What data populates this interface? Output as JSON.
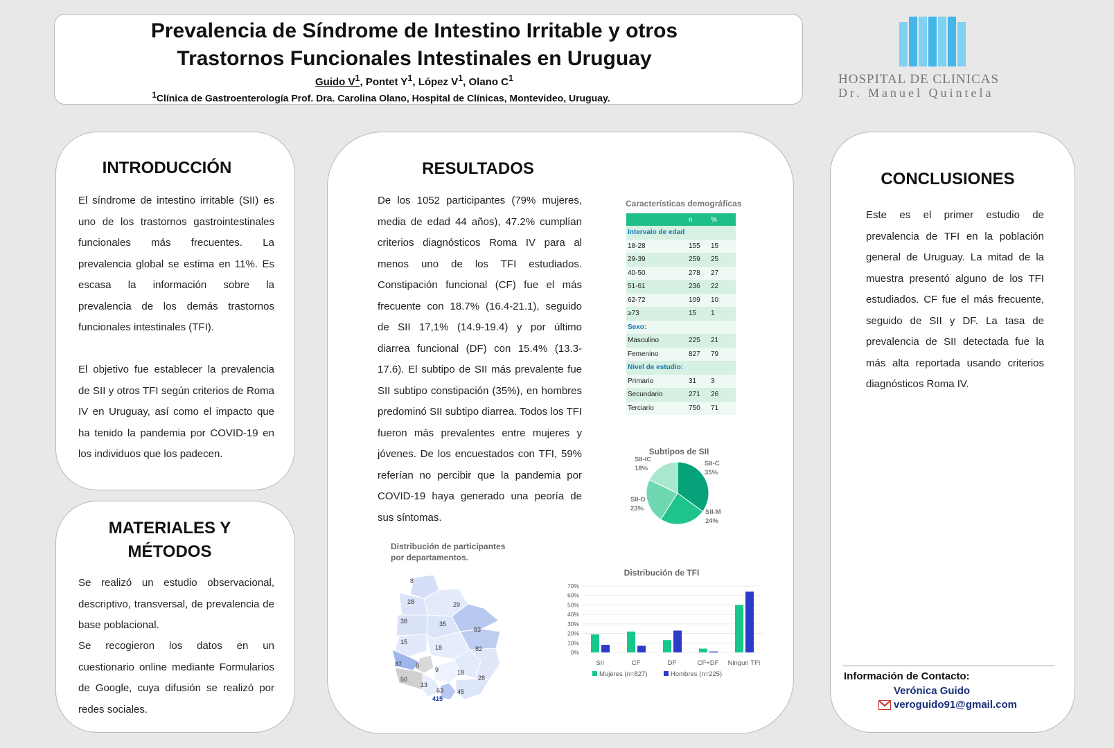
{
  "header": {
    "title_line1": "Prevalencia de Síndrome de Intestino Irritable y otros",
    "title_line2": "Trastornos Funcionales Intestinales en Uruguay",
    "authors": [
      {
        "name": "Guido V",
        "sup": "1"
      },
      {
        "name": "Pontet Y",
        "sup": "1"
      },
      {
        "name": "López V",
        "sup": "1"
      },
      {
        "name": "Olano C",
        "sup": "1"
      }
    ],
    "affiliation_sup": "1",
    "affiliation": "Clínica de Gastroenterología Prof. Dra. Carolina Olano, Hospital de Clínicas, Montevideo, Uruguay."
  },
  "logo": {
    "name": "HOSPITAL DE CLINICAS",
    "sub": "Dr. Manuel Quintela",
    "color": "#45b6e8"
  },
  "intro": {
    "title": "INTRODUCCIÓN",
    "p1": "El síndrome de intestino irritable (SII) es uno de los trastornos gastrointestinales funcionales más frecuentes. La prevalencia global se estima en 11%. Es escasa la información sobre la prevalencia de los demás trastornos funcionales intestinales (TFI).",
    "p2": "El objetivo fue establecer la prevalencia de SII y otros TFI según criterios de Roma IV en Uruguay, así como el impacto que ha tenido la pandemia por COVID-19 en los individuos que los padecen."
  },
  "methods": {
    "title1": "MATERIALES Y",
    "title2": "MÉTODOS",
    "p1": "Se realizó un estudio observacional, descriptivo, transversal, de prevalencia de base poblacional.",
    "p2": "Se recogieron los datos en un cuestionario online mediante Formularios de Google, cuya difusión se realizó por redes sociales."
  },
  "results": {
    "title": "RESULTADOS",
    "text": "De los 1052 participantes (79% mujeres, media de edad 44 años), 47.2% cumplían criterios diagnósticos Roma IV para al menos uno de los TFI estudiados. Constipación funcional (CF) fue el más frecuente con 18.7% (16.4-21.1), seguido de SII 17,1% (14.9-19.4) y por último diarrea funcional (DF) con 15.4% (13.3-17.6). El subtipo de SII más prevalente fue SII subtipo constipación (35%), en hombres predominó SII subtipo diarrea. Todos los TFI fueron más prevalentes entre mujeres y jóvenes.  De los encuestados con TFI, 59% referían no percibir que la pandemia por COVID-19 haya generado una peoría de sus síntomas."
  },
  "demographics": {
    "title": "Características demográficas",
    "header": [
      "",
      "n",
      "%"
    ],
    "rows": [
      {
        "label": "Intervalo de edad",
        "n": "",
        "pct": "",
        "category": true
      },
      {
        "label": "18-28",
        "n": "155",
        "pct": "15"
      },
      {
        "label": "29-39",
        "n": "259",
        "pct": "25"
      },
      {
        "label": "40-50",
        "n": "278",
        "pct": "27"
      },
      {
        "label": "51-61",
        "n": "236",
        "pct": "22"
      },
      {
        "label": "62-72",
        "n": "109",
        "pct": "10"
      },
      {
        "label": "≥73",
        "n": "15",
        "pct": "1"
      },
      {
        "label": "Sexo:",
        "n": "",
        "pct": "",
        "category": true
      },
      {
        "label": "Masculino",
        "n": "225",
        "pct": "21"
      },
      {
        "label": "Femenino",
        "n": "827",
        "pct": "79"
      },
      {
        "label": "Nivel de estudio:",
        "n": "",
        "pct": "",
        "category": true
      },
      {
        "label": "Primario",
        "n": "31",
        "pct": "3"
      },
      {
        "label": "Secundario",
        "n": "271",
        "pct": "26"
      },
      {
        "label": "Terciario",
        "n": "750",
        "pct": "71"
      }
    ]
  },
  "map": {
    "title_line1": "Distribución de participantes",
    "title_line2": "por departamentos.",
    "labels": [
      "8",
      "28",
      "29",
      "38",
      "35",
      "83",
      "15",
      "18",
      "82",
      "87",
      "8",
      "9",
      "18",
      "28",
      "50",
      "13",
      "63",
      "45",
      "415"
    ]
  },
  "chart_data": [
    {
      "type": "pie",
      "title": "Subtipos de SII",
      "labels": [
        "SII-C",
        "SII-M",
        "SII-D",
        "SII-IC"
      ],
      "values": [
        35,
        24,
        23,
        18
      ],
      "value_labels": [
        "35%",
        "24%",
        "23%",
        "18%"
      ],
      "colors": [
        "#06a27a",
        "#1fc38e",
        "#6ed8b0",
        "#a9e8cf"
      ]
    },
    {
      "type": "bar",
      "title": "Distribución de TFI",
      "categories": [
        "SII",
        "CF",
        "DF",
        "CF+DF",
        "Ningun TFI"
      ],
      "yticks": [
        "0%",
        "10%",
        "20%",
        "30%",
        "40%",
        "50%",
        "60%",
        "70%"
      ],
      "ylim": [
        0,
        70
      ],
      "series": [
        {
          "name": "Mujeres (n=827)",
          "values": [
            19,
            22,
            13,
            4,
            50
          ],
          "color": "#17c78e"
        },
        {
          "name": "Hombres (n=225)",
          "values": [
            8,
            7,
            23,
            1,
            64
          ],
          "color": "#2b3cc9"
        }
      ]
    }
  ],
  "conclusions": {
    "title": "CONCLUSIONES",
    "text": "Este es el primer estudio de prevalencia de TFI en la población general de Uruguay. La mitad de la muestra presentó alguno de los TFI estudiados. CF fue el más frecuente, seguido de SII y DF. La tasa de prevalencia de SII detectada fue la más alta reportada usando criterios diagnósticos Roma IV."
  },
  "contact": {
    "heading": "Información de Contacto:",
    "name": "Verónica Guido",
    "email": "veroguido91@gmail.com",
    "icon": "mail-icon"
  }
}
